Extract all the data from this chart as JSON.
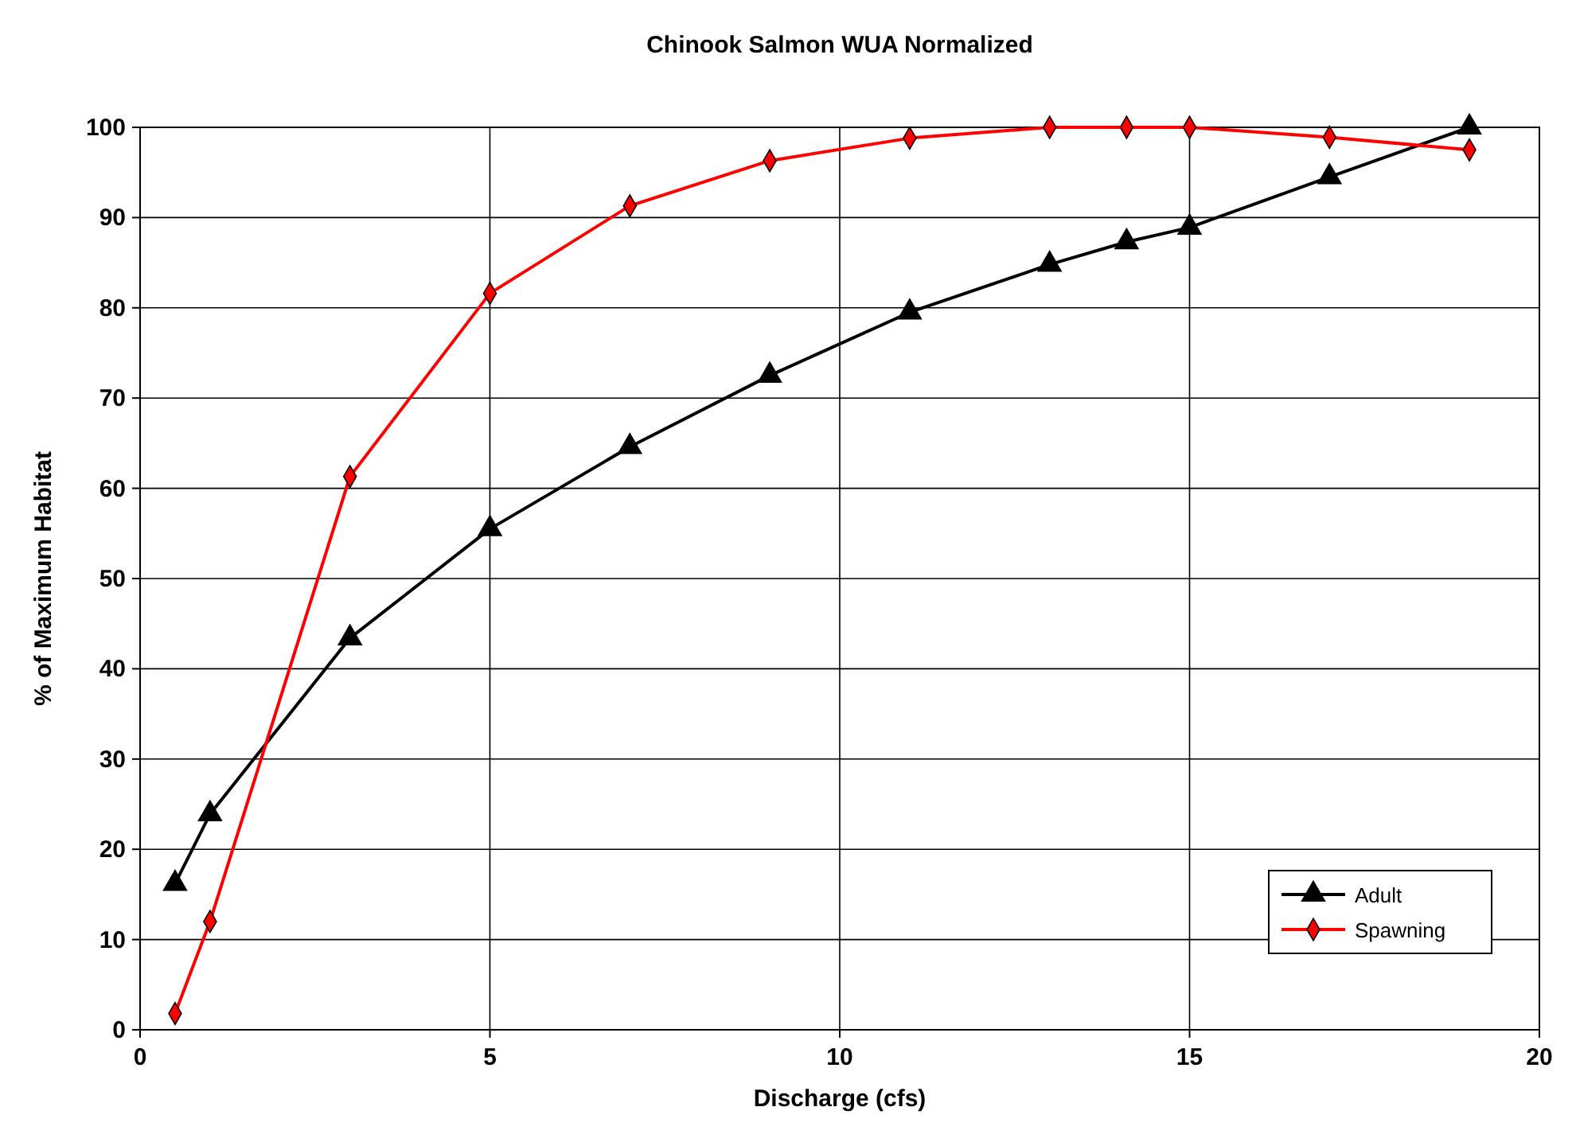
{
  "chart_data": {
    "type": "line",
    "title": "Chinook Salmon WUA Normalized",
    "xlabel": "Discharge (cfs)",
    "ylabel": "% of Maximum Habitat",
    "x": [
      0.5,
      1,
      3,
      5,
      7,
      9,
      11,
      13,
      14.1,
      15,
      17,
      19
    ],
    "series": [
      {
        "name": "Adult",
        "color": "#000000",
        "marker": "triangle",
        "values": [
          16.2,
          23.9,
          43.4,
          55.5,
          64.6,
          72.5,
          79.5,
          84.8,
          87.3,
          88.9,
          94.5,
          100
        ]
      },
      {
        "name": "Spawning",
        "color": "#ff0000",
        "marker": "diamond",
        "values": [
          1.8,
          12,
          61.3,
          81.6,
          91.3,
          96.3,
          98.8,
          100,
          100,
          100,
          98.9,
          97.5
        ]
      }
    ],
    "xlim": [
      0,
      20
    ],
    "xticks": [
      0,
      5,
      10,
      15,
      20
    ],
    "ylim": [
      0,
      100
    ],
    "yticks": [
      0,
      10,
      20,
      30,
      40,
      50,
      60,
      70,
      80,
      90,
      100
    ],
    "grid": true,
    "legend": "bottom right",
    "line_style": "solid"
  }
}
